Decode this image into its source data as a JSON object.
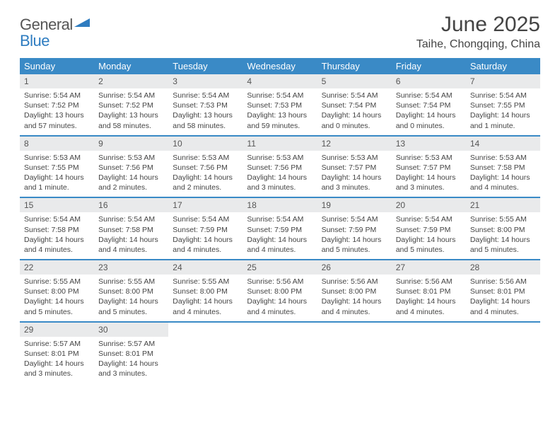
{
  "brand": {
    "name_a": "General",
    "name_b": "Blue"
  },
  "title": "June 2025",
  "location": "Taihe, Chongqing, China",
  "colors": {
    "header_bar": "#3a8ac6",
    "daynum_bg": "#e9eaeb",
    "text": "#444444",
    "rule": "#3a8ac6"
  },
  "day_headers": [
    "Sunday",
    "Monday",
    "Tuesday",
    "Wednesday",
    "Thursday",
    "Friday",
    "Saturday"
  ],
  "weeks": [
    [
      {
        "n": "1",
        "sr": "Sunrise: 5:54 AM",
        "ss": "Sunset: 7:52 PM",
        "dl": "Daylight: 13 hours and 57 minutes."
      },
      {
        "n": "2",
        "sr": "Sunrise: 5:54 AM",
        "ss": "Sunset: 7:52 PM",
        "dl": "Daylight: 13 hours and 58 minutes."
      },
      {
        "n": "3",
        "sr": "Sunrise: 5:54 AM",
        "ss": "Sunset: 7:53 PM",
        "dl": "Daylight: 13 hours and 58 minutes."
      },
      {
        "n": "4",
        "sr": "Sunrise: 5:54 AM",
        "ss": "Sunset: 7:53 PM",
        "dl": "Daylight: 13 hours and 59 minutes."
      },
      {
        "n": "5",
        "sr": "Sunrise: 5:54 AM",
        "ss": "Sunset: 7:54 PM",
        "dl": "Daylight: 14 hours and 0 minutes."
      },
      {
        "n": "6",
        "sr": "Sunrise: 5:54 AM",
        "ss": "Sunset: 7:54 PM",
        "dl": "Daylight: 14 hours and 0 minutes."
      },
      {
        "n": "7",
        "sr": "Sunrise: 5:54 AM",
        "ss": "Sunset: 7:55 PM",
        "dl": "Daylight: 14 hours and 1 minute."
      }
    ],
    [
      {
        "n": "8",
        "sr": "Sunrise: 5:53 AM",
        "ss": "Sunset: 7:55 PM",
        "dl": "Daylight: 14 hours and 1 minute."
      },
      {
        "n": "9",
        "sr": "Sunrise: 5:53 AM",
        "ss": "Sunset: 7:56 PM",
        "dl": "Daylight: 14 hours and 2 minutes."
      },
      {
        "n": "10",
        "sr": "Sunrise: 5:53 AM",
        "ss": "Sunset: 7:56 PM",
        "dl": "Daylight: 14 hours and 2 minutes."
      },
      {
        "n": "11",
        "sr": "Sunrise: 5:53 AM",
        "ss": "Sunset: 7:56 PM",
        "dl": "Daylight: 14 hours and 3 minutes."
      },
      {
        "n": "12",
        "sr": "Sunrise: 5:53 AM",
        "ss": "Sunset: 7:57 PM",
        "dl": "Daylight: 14 hours and 3 minutes."
      },
      {
        "n": "13",
        "sr": "Sunrise: 5:53 AM",
        "ss": "Sunset: 7:57 PM",
        "dl": "Daylight: 14 hours and 3 minutes."
      },
      {
        "n": "14",
        "sr": "Sunrise: 5:53 AM",
        "ss": "Sunset: 7:58 PM",
        "dl": "Daylight: 14 hours and 4 minutes."
      }
    ],
    [
      {
        "n": "15",
        "sr": "Sunrise: 5:54 AM",
        "ss": "Sunset: 7:58 PM",
        "dl": "Daylight: 14 hours and 4 minutes."
      },
      {
        "n": "16",
        "sr": "Sunrise: 5:54 AM",
        "ss": "Sunset: 7:58 PM",
        "dl": "Daylight: 14 hours and 4 minutes."
      },
      {
        "n": "17",
        "sr": "Sunrise: 5:54 AM",
        "ss": "Sunset: 7:59 PM",
        "dl": "Daylight: 14 hours and 4 minutes."
      },
      {
        "n": "18",
        "sr": "Sunrise: 5:54 AM",
        "ss": "Sunset: 7:59 PM",
        "dl": "Daylight: 14 hours and 4 minutes."
      },
      {
        "n": "19",
        "sr": "Sunrise: 5:54 AM",
        "ss": "Sunset: 7:59 PM",
        "dl": "Daylight: 14 hours and 5 minutes."
      },
      {
        "n": "20",
        "sr": "Sunrise: 5:54 AM",
        "ss": "Sunset: 7:59 PM",
        "dl": "Daylight: 14 hours and 5 minutes."
      },
      {
        "n": "21",
        "sr": "Sunrise: 5:55 AM",
        "ss": "Sunset: 8:00 PM",
        "dl": "Daylight: 14 hours and 5 minutes."
      }
    ],
    [
      {
        "n": "22",
        "sr": "Sunrise: 5:55 AM",
        "ss": "Sunset: 8:00 PM",
        "dl": "Daylight: 14 hours and 5 minutes."
      },
      {
        "n": "23",
        "sr": "Sunrise: 5:55 AM",
        "ss": "Sunset: 8:00 PM",
        "dl": "Daylight: 14 hours and 5 minutes."
      },
      {
        "n": "24",
        "sr": "Sunrise: 5:55 AM",
        "ss": "Sunset: 8:00 PM",
        "dl": "Daylight: 14 hours and 4 minutes."
      },
      {
        "n": "25",
        "sr": "Sunrise: 5:56 AM",
        "ss": "Sunset: 8:00 PM",
        "dl": "Daylight: 14 hours and 4 minutes."
      },
      {
        "n": "26",
        "sr": "Sunrise: 5:56 AM",
        "ss": "Sunset: 8:00 PM",
        "dl": "Daylight: 14 hours and 4 minutes."
      },
      {
        "n": "27",
        "sr": "Sunrise: 5:56 AM",
        "ss": "Sunset: 8:01 PM",
        "dl": "Daylight: 14 hours and 4 minutes."
      },
      {
        "n": "28",
        "sr": "Sunrise: 5:56 AM",
        "ss": "Sunset: 8:01 PM",
        "dl": "Daylight: 14 hours and 4 minutes."
      }
    ],
    [
      {
        "n": "29",
        "sr": "Sunrise: 5:57 AM",
        "ss": "Sunset: 8:01 PM",
        "dl": "Daylight: 14 hours and 3 minutes."
      },
      {
        "n": "30",
        "sr": "Sunrise: 5:57 AM",
        "ss": "Sunset: 8:01 PM",
        "dl": "Daylight: 14 hours and 3 minutes."
      },
      {
        "empty": true
      },
      {
        "empty": true
      },
      {
        "empty": true
      },
      {
        "empty": true
      },
      {
        "empty": true
      }
    ]
  ]
}
